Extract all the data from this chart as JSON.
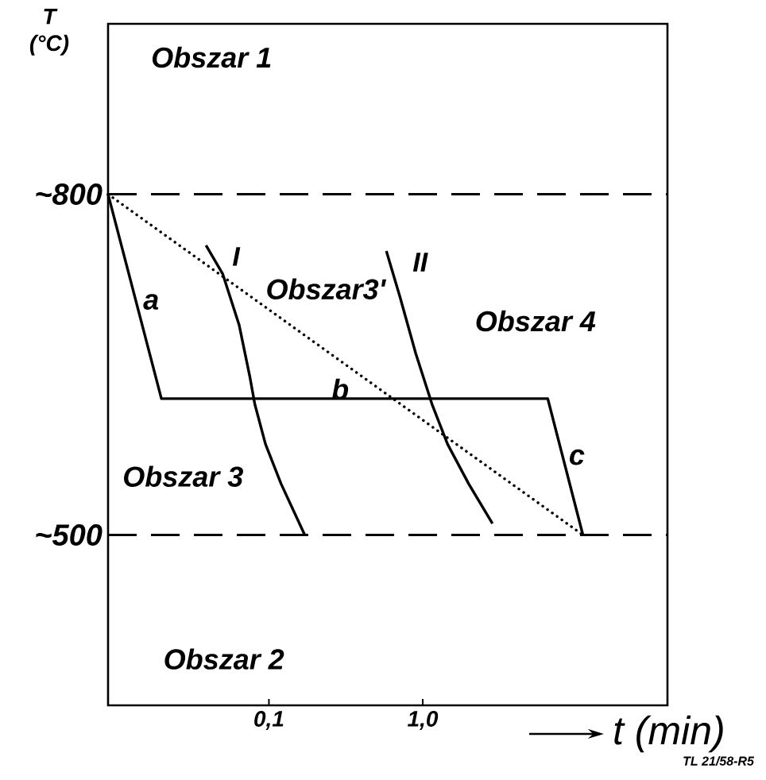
{
  "chart_data": {
    "type": "line",
    "xlabel": "t (min)",
    "ylabel": "T (°C)",
    "log": "x",
    "marker": "none",
    "xlim": [
      0.009,
      39
    ],
    "ylim": [
      350,
      950
    ],
    "xticks": [
      {
        "value": 0.1,
        "label": "0,1"
      },
      {
        "value": 1,
        "label": "1,0"
      }
    ],
    "yticks": [
      {
        "value": 800,
        "label": "~800"
      },
      {
        "value": 500,
        "label": "~500"
      }
    ],
    "ref_lines": [
      {
        "axis": "y",
        "value": 800,
        "line_style": "dashed",
        "color": "#000000"
      },
      {
        "axis": "y",
        "value": 500,
        "line_style": "dashed",
        "color": "#000000"
      }
    ],
    "series": [
      {
        "color": "#000000",
        "line_style": "solid",
        "x": [
          0.009,
          0.02,
          6.5,
          11
        ],
        "values": [
          800,
          620,
          620,
          500
        ]
      },
      {
        "color": "#000000",
        "line_style": "dotted",
        "x": [
          0.009,
          11
        ],
        "values": [
          800,
          500
        ]
      },
      {
        "name": "I",
        "color": "#000000",
        "line_style": "solid",
        "x": [
          0.039,
          0.05,
          0.064,
          0.075,
          0.081,
          0.095,
          0.12,
          0.171
        ],
        "values": [
          755,
          730,
          685,
          640,
          615,
          580,
          545,
          500
        ]
      },
      {
        "name": "II",
        "color": "#000000",
        "line_style": "solid",
        "x": [
          0.58,
          0.71,
          0.9,
          1.15,
          1.45,
          1.99,
          2.84
        ],
        "values": [
          750,
          710,
          660,
          615,
          580,
          545,
          510
        ]
      }
    ],
    "annotations": [
      "Obszar 1",
      "Obszar3'",
      "Obszar 4",
      "Obszar 3",
      "Obszar 2",
      "a",
      "b",
      "c",
      "TL 21/58-R5"
    ]
  }
}
